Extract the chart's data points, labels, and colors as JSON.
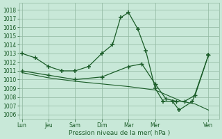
{
  "bg_color": "#c8e8d8",
  "grid_color": "#90b8a0",
  "line_color": "#1a5c28",
  "xlabel": "Pression niveau de la mer( hPa )",
  "ylim": [
    1005.5,
    1018.8
  ],
  "yticks": [
    1006,
    1007,
    1008,
    1009,
    1010,
    1011,
    1012,
    1013,
    1014,
    1015,
    1016,
    1017,
    1018
  ],
  "xtick_labels": [
    "Lun",
    "Jeu",
    "Sam",
    "Dim",
    "Mar",
    "Mer",
    "Ven"
  ],
  "xtick_positions": [
    0,
    1,
    2,
    3,
    4,
    5,
    7
  ],
  "xlim": [
    -0.1,
    7.4
  ],
  "curve1_x": [
    0,
    0.5,
    1,
    1.5,
    2,
    2.5,
    3,
    3.4,
    3.7,
    4,
    4.35,
    4.65,
    5,
    5.3,
    5.65,
    5.9,
    6.4,
    7
  ],
  "curve1_y": [
    1013,
    1012.5,
    1011.5,
    1011,
    1011,
    1011.5,
    1013,
    1014,
    1017.1,
    1017.7,
    1015.8,
    1013.3,
    1009,
    1007.5,
    1007.5,
    1006.5,
    1007.5,
    1012.8
  ],
  "curve2_x": [
    0,
    1,
    2,
    3,
    4,
    4.5,
    5,
    5.4,
    5.8,
    6.1,
    6.5,
    7
  ],
  "curve2_y": [
    1011,
    1010.5,
    1010,
    1010.3,
    1011.5,
    1011.8,
    1009.5,
    1007.8,
    1007.5,
    1007.5,
    1008.2,
    1012.8
  ],
  "curve3_x": [
    0,
    1,
    2,
    3,
    4,
    5,
    6,
    6.5,
    7
  ],
  "curve3_y": [
    1010.8,
    1010.2,
    1009.8,
    1009.5,
    1009.2,
    1008.8,
    1007.5,
    1007.2,
    1006.5
  ]
}
